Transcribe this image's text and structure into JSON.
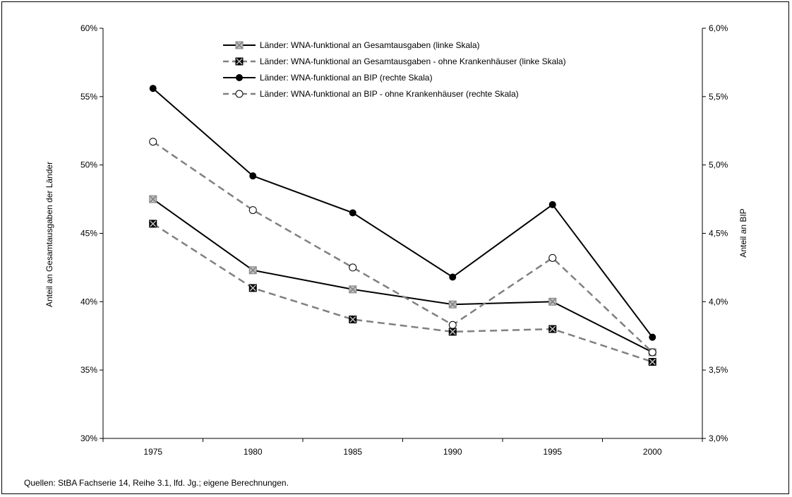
{
  "chart_data": {
    "type": "line",
    "x": [
      "1975",
      "1980",
      "1985",
      "1990",
      "1995",
      "2000"
    ],
    "ylabel": "Anteil an Gesamtausgaben der Länder",
    "y2label": "Anteil an BIP",
    "ylim": [
      30,
      60
    ],
    "y2lim": [
      3.0,
      6.0
    ],
    "yticks": [
      "30%",
      "35%",
      "40%",
      "45%",
      "50%",
      "55%",
      "60%"
    ],
    "y2ticks": [
      "3,0%",
      "3,5%",
      "4,0%",
      "4,5%",
      "5,0%",
      "5,5%",
      "6,0%"
    ],
    "legend_position": "top-center",
    "series": [
      {
        "name": "Länder: WNA-funktional an Gesamtausgaben (linke Skala)",
        "axis": "left",
        "values": [
          47.5,
          42.3,
          40.9,
          39.8,
          40.0,
          36.3
        ],
        "line": "solid",
        "color": "#000000",
        "marker": "x-square-gray"
      },
      {
        "name": "Länder: WNA-funktional  an Gesamtausgaben - ohne Krankenhäuser (linke Skala)",
        "axis": "left",
        "values": [
          45.7,
          41.0,
          38.7,
          37.8,
          38.0,
          35.6
        ],
        "line": "dashed",
        "color": "#808080",
        "marker": "x-square-black"
      },
      {
        "name": "Länder: WNA-funktional an BIP (rechte Skala)",
        "axis": "right",
        "values": [
          5.56,
          4.92,
          4.65,
          4.18,
          4.71,
          3.74
        ],
        "line": "solid",
        "color": "#000000",
        "marker": "circle-filled"
      },
      {
        "name": "Länder: WNA-funktional an BIP  - ohne Krankenhäuser (rechte Skala)",
        "axis": "right",
        "values": [
          5.17,
          4.67,
          4.25,
          3.83,
          4.32,
          3.63
        ],
        "line": "dashed",
        "color": "#808080",
        "marker": "circle-open"
      }
    ]
  },
  "footer": {
    "source": "Quellen: StBA Fachserie 14, Reihe 3.1, lfd. Jg.; eigene Berechnungen."
  }
}
